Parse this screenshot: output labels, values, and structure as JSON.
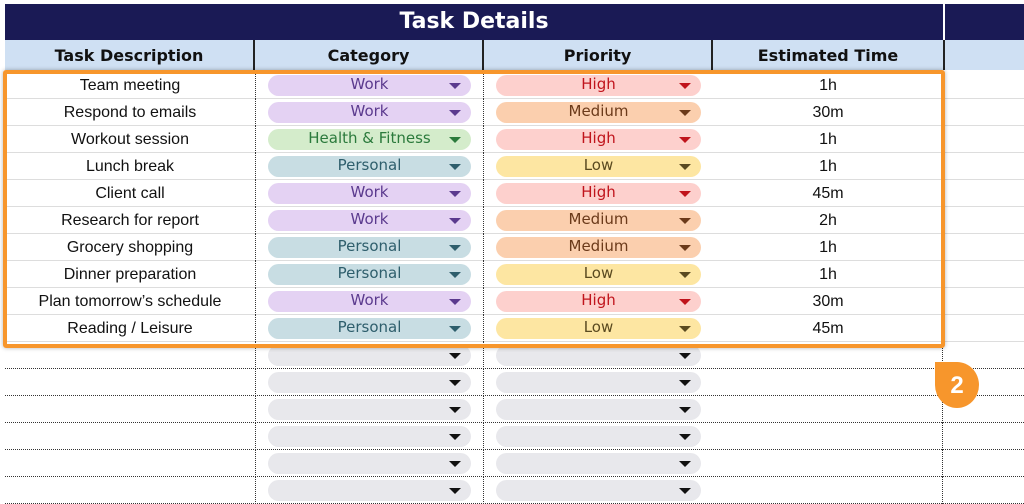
{
  "title": "Task Details",
  "headers": [
    "Task Description",
    "Category",
    "Priority",
    "Estimated Time"
  ],
  "colors": {
    "Work": [
      "#e4d2f3",
      "#5b3a8e"
    ],
    "Health & Fitness": [
      "#d4eccb",
      "#2b7a3c"
    ],
    "Personal": [
      "#c8dde3",
      "#2e5e6c"
    ],
    "High": [
      "#fdd0cd",
      "#c0141c"
    ],
    "Medium": [
      "#fbcfae",
      "#6b3a1a"
    ],
    "Low": [
      "#fde6a2",
      "#5a4a20"
    ],
    "empty": [
      "#e8e8ec",
      "#111"
    ],
    "title_bg": "#1a1a55",
    "header_bg": "#cfe0f3",
    "highlight": "#f7962c"
  },
  "rows": [
    {
      "task": "Team meeting",
      "category": "Work",
      "priority": "High",
      "time": "1h"
    },
    {
      "task": "Respond to emails",
      "category": "Work",
      "priority": "Medium",
      "time": "30m"
    },
    {
      "task": "Workout session",
      "category": "Health & Fitness",
      "priority": "High",
      "time": "1h"
    },
    {
      "task": "Lunch break",
      "category": "Personal",
      "priority": "Low",
      "time": "1h"
    },
    {
      "task": "Client call",
      "category": "Work",
      "priority": "High",
      "time": "45m"
    },
    {
      "task": "Research for report",
      "category": "Work",
      "priority": "Medium",
      "time": "2h"
    },
    {
      "task": "Grocery shopping",
      "category": "Personal",
      "priority": "Medium",
      "time": "1h"
    },
    {
      "task": "Dinner preparation",
      "category": "Personal",
      "priority": "Low",
      "time": "1h"
    },
    {
      "task": "Plan tomorrow’s schedule",
      "category": "Work",
      "priority": "High",
      "time": "30m"
    },
    {
      "task": "Reading / Leisure",
      "category": "Personal",
      "priority": "Low",
      "time": "45m"
    }
  ],
  "empty_rows": 6,
  "callout_badge": "2"
}
